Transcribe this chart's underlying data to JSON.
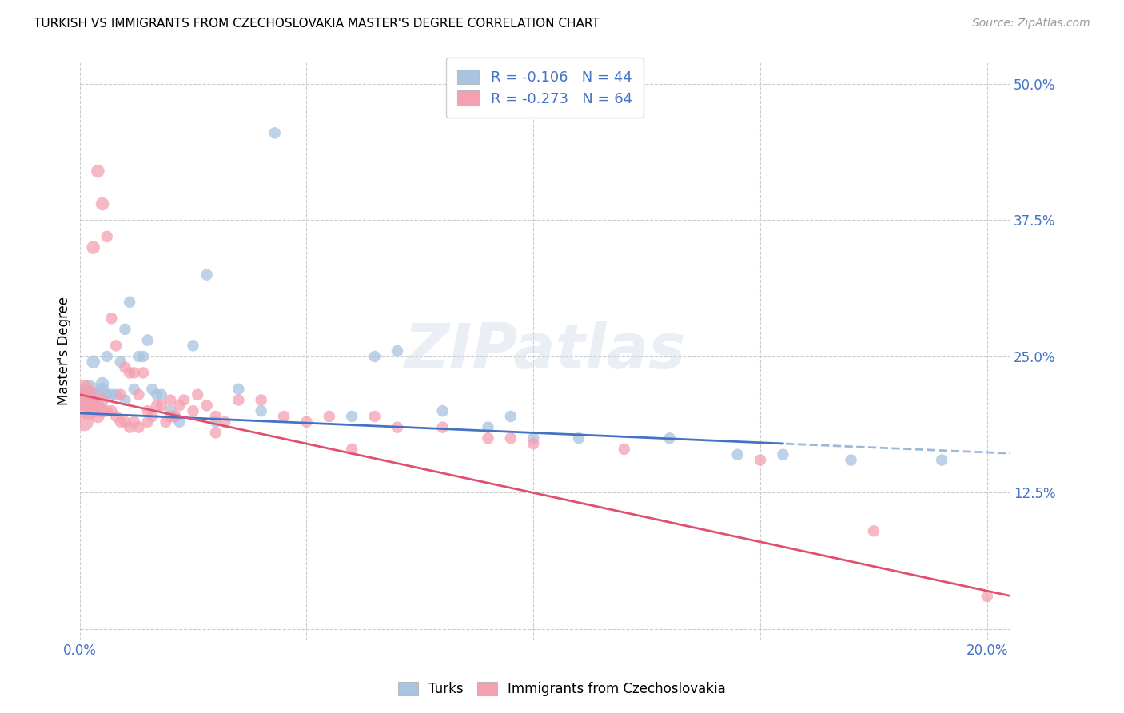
{
  "title": "TURKISH VS IMMIGRANTS FROM CZECHOSLOVAKIA MASTER'S DEGREE CORRELATION CHART",
  "source": "Source: ZipAtlas.com",
  "ylabel": "Master's Degree",
  "blue_R": -0.106,
  "blue_N": 44,
  "pink_R": -0.273,
  "pink_N": 64,
  "blue_color": "#a8c4e0",
  "pink_color": "#f4a0b0",
  "blue_line_color": "#4472c4",
  "pink_line_color": "#e05070",
  "blue_dashed_color": "#a0b8d8",
  "watermark": "ZIPatlas",
  "legend_label_blue": "Turks",
  "legend_label_pink": "Immigrants from Czechoslovakia",
  "axis_label_color": "#4472c4",
  "x_range": [
    0.0,
    0.205
  ],
  "y_range": [
    -0.01,
    0.52
  ],
  "blue_intercept": 0.198,
  "blue_slope": -0.18,
  "pink_intercept": 0.215,
  "pink_slope": -0.9,
  "blue_scatter_x": [
    0.001,
    0.002,
    0.003,
    0.003,
    0.004,
    0.005,
    0.005,
    0.006,
    0.006,
    0.007,
    0.008,
    0.009,
    0.01,
    0.01,
    0.011,
    0.012,
    0.013,
    0.014,
    0.015,
    0.016,
    0.017,
    0.018,
    0.02,
    0.021,
    0.022,
    0.025,
    0.028,
    0.03,
    0.035,
    0.04,
    0.043,
    0.06,
    0.065,
    0.07,
    0.08,
    0.09,
    0.095,
    0.1,
    0.11,
    0.13,
    0.145,
    0.155,
    0.17,
    0.19
  ],
  "blue_scatter_y": [
    0.215,
    0.22,
    0.21,
    0.245,
    0.215,
    0.22,
    0.225,
    0.215,
    0.25,
    0.215,
    0.215,
    0.245,
    0.21,
    0.275,
    0.3,
    0.22,
    0.25,
    0.25,
    0.265,
    0.22,
    0.215,
    0.215,
    0.2,
    0.195,
    0.19,
    0.26,
    0.325,
    0.19,
    0.22,
    0.2,
    0.455,
    0.195,
    0.25,
    0.255,
    0.2,
    0.185,
    0.195,
    0.175,
    0.175,
    0.175,
    0.16,
    0.16,
    0.155,
    0.155
  ],
  "pink_scatter_x": [
    0.001,
    0.001,
    0.001,
    0.002,
    0.002,
    0.002,
    0.003,
    0.003,
    0.004,
    0.004,
    0.004,
    0.005,
    0.005,
    0.005,
    0.006,
    0.006,
    0.007,
    0.007,
    0.008,
    0.008,
    0.009,
    0.009,
    0.01,
    0.01,
    0.011,
    0.011,
    0.012,
    0.012,
    0.013,
    0.013,
    0.014,
    0.015,
    0.015,
    0.016,
    0.017,
    0.018,
    0.019,
    0.02,
    0.02,
    0.021,
    0.022,
    0.023,
    0.025,
    0.026,
    0.028,
    0.03,
    0.03,
    0.032,
    0.035,
    0.04,
    0.045,
    0.05,
    0.055,
    0.06,
    0.065,
    0.07,
    0.08,
    0.09,
    0.095,
    0.1,
    0.12,
    0.15,
    0.175,
    0.2
  ],
  "pink_scatter_y": [
    0.22,
    0.21,
    0.19,
    0.215,
    0.205,
    0.2,
    0.35,
    0.2,
    0.42,
    0.205,
    0.195,
    0.39,
    0.21,
    0.2,
    0.36,
    0.2,
    0.285,
    0.2,
    0.26,
    0.195,
    0.215,
    0.19,
    0.24,
    0.19,
    0.235,
    0.185,
    0.235,
    0.19,
    0.215,
    0.185,
    0.235,
    0.2,
    0.19,
    0.195,
    0.205,
    0.205,
    0.19,
    0.21,
    0.195,
    0.195,
    0.205,
    0.21,
    0.2,
    0.215,
    0.205,
    0.195,
    0.18,
    0.19,
    0.21,
    0.21,
    0.195,
    0.19,
    0.195,
    0.165,
    0.195,
    0.185,
    0.185,
    0.175,
    0.175,
    0.17,
    0.165,
    0.155,
    0.09,
    0.03
  ]
}
